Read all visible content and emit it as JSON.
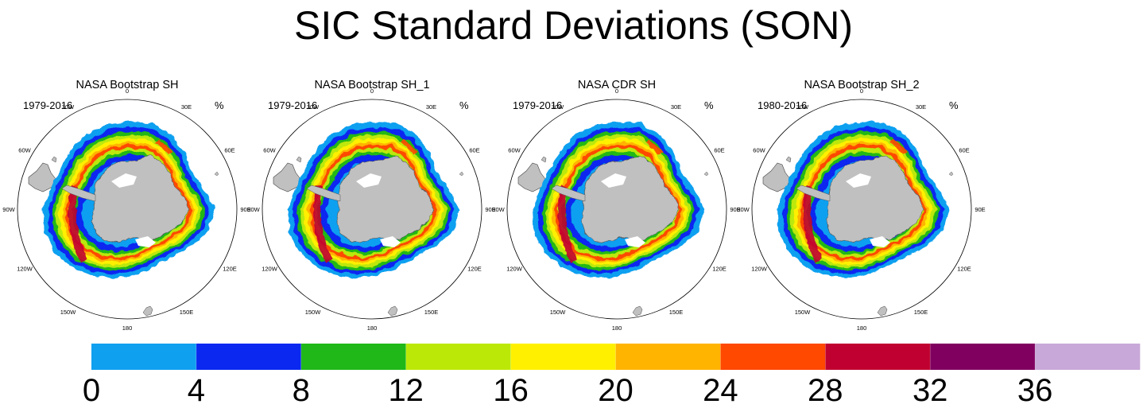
{
  "title": "SIC Standard Deviations (SON)",
  "units": "%",
  "longitude_labels": [
    "0",
    "30E",
    "60E",
    "90E",
    "120E",
    "150E",
    "180",
    "150W",
    "120W",
    "90W",
    "60W",
    "30W"
  ],
  "panels": [
    {
      "title": "NASA Bootstrap SH",
      "period": "1979-2016"
    },
    {
      "title": "NASA Bootstrap SH_1",
      "period": "1979-2016"
    },
    {
      "title": "NASA CDR SH",
      "period": "1979-2016"
    },
    {
      "title": "NASA Bootstrap SH_2",
      "period": "1980-2016"
    }
  ],
  "colors": {
    "land": "#c0c0c0",
    "background": "#ffffff",
    "levels": [
      "#10a0f0",
      "#0a28f0",
      "#20b818",
      "#bce808",
      "#fff000",
      "#ffb400",
      "#ff4800",
      "#c00030",
      "#800060",
      "#c8a8d8"
    ]
  },
  "chart_data": {
    "type": "heatmap",
    "title": "SIC Standard Deviations (SON)",
    "projection": "south-polar-stereographic",
    "variable": "sea ice concentration standard deviation",
    "units": "%",
    "colorbar": {
      "boundaries": [
        0,
        4,
        8,
        12,
        16,
        20,
        24,
        28,
        32,
        36
      ],
      "tick_labels": [
        "0",
        "4",
        "8",
        "12",
        "16",
        "20",
        "24",
        "28",
        "32",
        "36"
      ],
      "colors": [
        "#10a0f0",
        "#0a28f0",
        "#20b818",
        "#bce808",
        "#fff000",
        "#ffb400",
        "#ff4800",
        "#c00030",
        "#800060",
        "#c8a8d8"
      ]
    },
    "panels": [
      "NASA Bootstrap SH",
      "NASA Bootstrap SH_1",
      "NASA CDR SH",
      "NASA Bootstrap SH_2"
    ]
  }
}
